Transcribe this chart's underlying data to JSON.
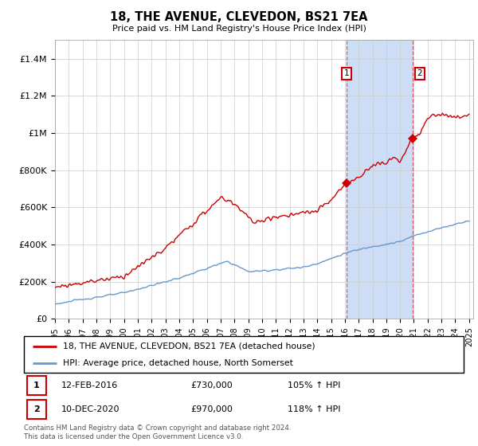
{
  "title": "18, THE AVENUE, CLEVEDON, BS21 7EA",
  "subtitle": "Price paid vs. HM Land Registry's House Price Index (HPI)",
  "hpi_color": "#6699cc",
  "price_color": "#cc0000",
  "shaded_color": "#ccddf5",
  "ylim": [
    0,
    1500000
  ],
  "yticks": [
    0,
    200000,
    400000,
    600000,
    800000,
    1000000,
    1200000,
    1400000
  ],
  "ytick_labels": [
    "£0",
    "£200K",
    "£400K",
    "£600K",
    "£800K",
    "£1M",
    "£1.2M",
    "£1.4M"
  ],
  "legend_line1": "18, THE AVENUE, CLEVEDON, BS21 7EA (detached house)",
  "legend_line2": "HPI: Average price, detached house, North Somerset",
  "sale1_label": "1",
  "sale1_date": "12-FEB-2016",
  "sale1_price": "£730,000",
  "sale1_pct": "105% ↑ HPI",
  "sale2_label": "2",
  "sale2_date": "10-DEC-2020",
  "sale2_price": "£970,000",
  "sale2_pct": "118% ↑ HPI",
  "footer": "Contains HM Land Registry data © Crown copyright and database right 2024.\nThis data is licensed under the Open Government Licence v3.0.",
  "sale1_x": 2016.12,
  "sale1_y": 730000,
  "sale2_x": 2020.93,
  "sale2_y": 970000,
  "shade_x1": 2016.12,
  "shade_x2": 2020.93,
  "xlim_left": 1995,
  "xlim_right": 2025.3
}
